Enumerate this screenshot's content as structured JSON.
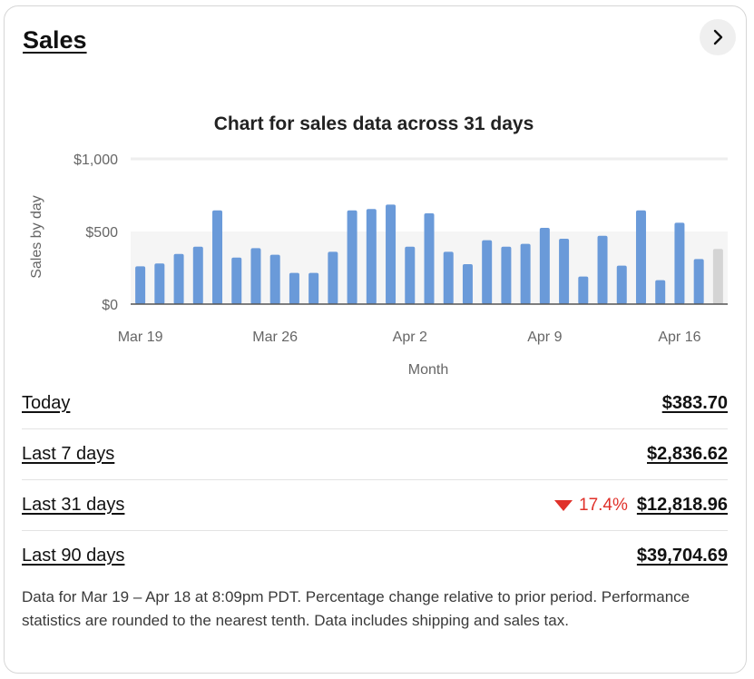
{
  "card": {
    "title": "Sales",
    "open_icon": "chevron-right-icon"
  },
  "chart_data": {
    "type": "bar",
    "title": "Chart for sales data across 31 days",
    "ylabel": "Sales by day",
    "xlabel": "Month",
    "ylim": [
      0,
      1000
    ],
    "y_ticks": [
      "$1,000",
      "$500",
      "$0"
    ],
    "x_tick_labels": [
      {
        "index": 0,
        "label": "Mar 19"
      },
      {
        "index": 7,
        "label": "Mar 26"
      },
      {
        "index": 14,
        "label": "Apr 2"
      },
      {
        "index": 21,
        "label": "Apr 9"
      },
      {
        "index": 28,
        "label": "Apr 16"
      }
    ],
    "categories": [
      "Mar 19",
      "Mar 20",
      "Mar 21",
      "Mar 22",
      "Mar 23",
      "Mar 24",
      "Mar 25",
      "Mar 26",
      "Mar 27",
      "Mar 28",
      "Mar 29",
      "Mar 30",
      "Mar 31",
      "Apr 1",
      "Apr 2",
      "Apr 3",
      "Apr 4",
      "Apr 5",
      "Apr 6",
      "Apr 7",
      "Apr 8",
      "Apr 9",
      "Apr 10",
      "Apr 11",
      "Apr 12",
      "Apr 13",
      "Apr 14",
      "Apr 15",
      "Apr 16",
      "Apr 17",
      "Apr 18"
    ],
    "values": [
      260,
      280,
      345,
      395,
      645,
      320,
      385,
      340,
      215,
      215,
      360,
      645,
      655,
      685,
      395,
      625,
      360,
      275,
      440,
      395,
      415,
      525,
      450,
      190,
      470,
      265,
      645,
      165,
      560,
      310,
      380
    ],
    "bar_color": "#6a9ad9",
    "current_bar_color": "#d4d4d4",
    "band_color": "#f5f5f5",
    "grid": true
  },
  "stats": [
    {
      "label": "Today",
      "value": "$383.70"
    },
    {
      "label": "Last 7 days",
      "value": "$2,836.62"
    },
    {
      "label": "Last 31 days",
      "value": "$12,818.96",
      "change": "17.4%",
      "change_direction": "down",
      "change_color": "#e0312a"
    },
    {
      "label": "Last 90 days",
      "value": "$39,704.69"
    }
  ],
  "footnote": "Data for Mar 19 – Apr 18 at 8:09pm PDT. Percentage change relative to prior period. Performance statistics are rounded to the nearest tenth. Data includes shipping and sales tax."
}
